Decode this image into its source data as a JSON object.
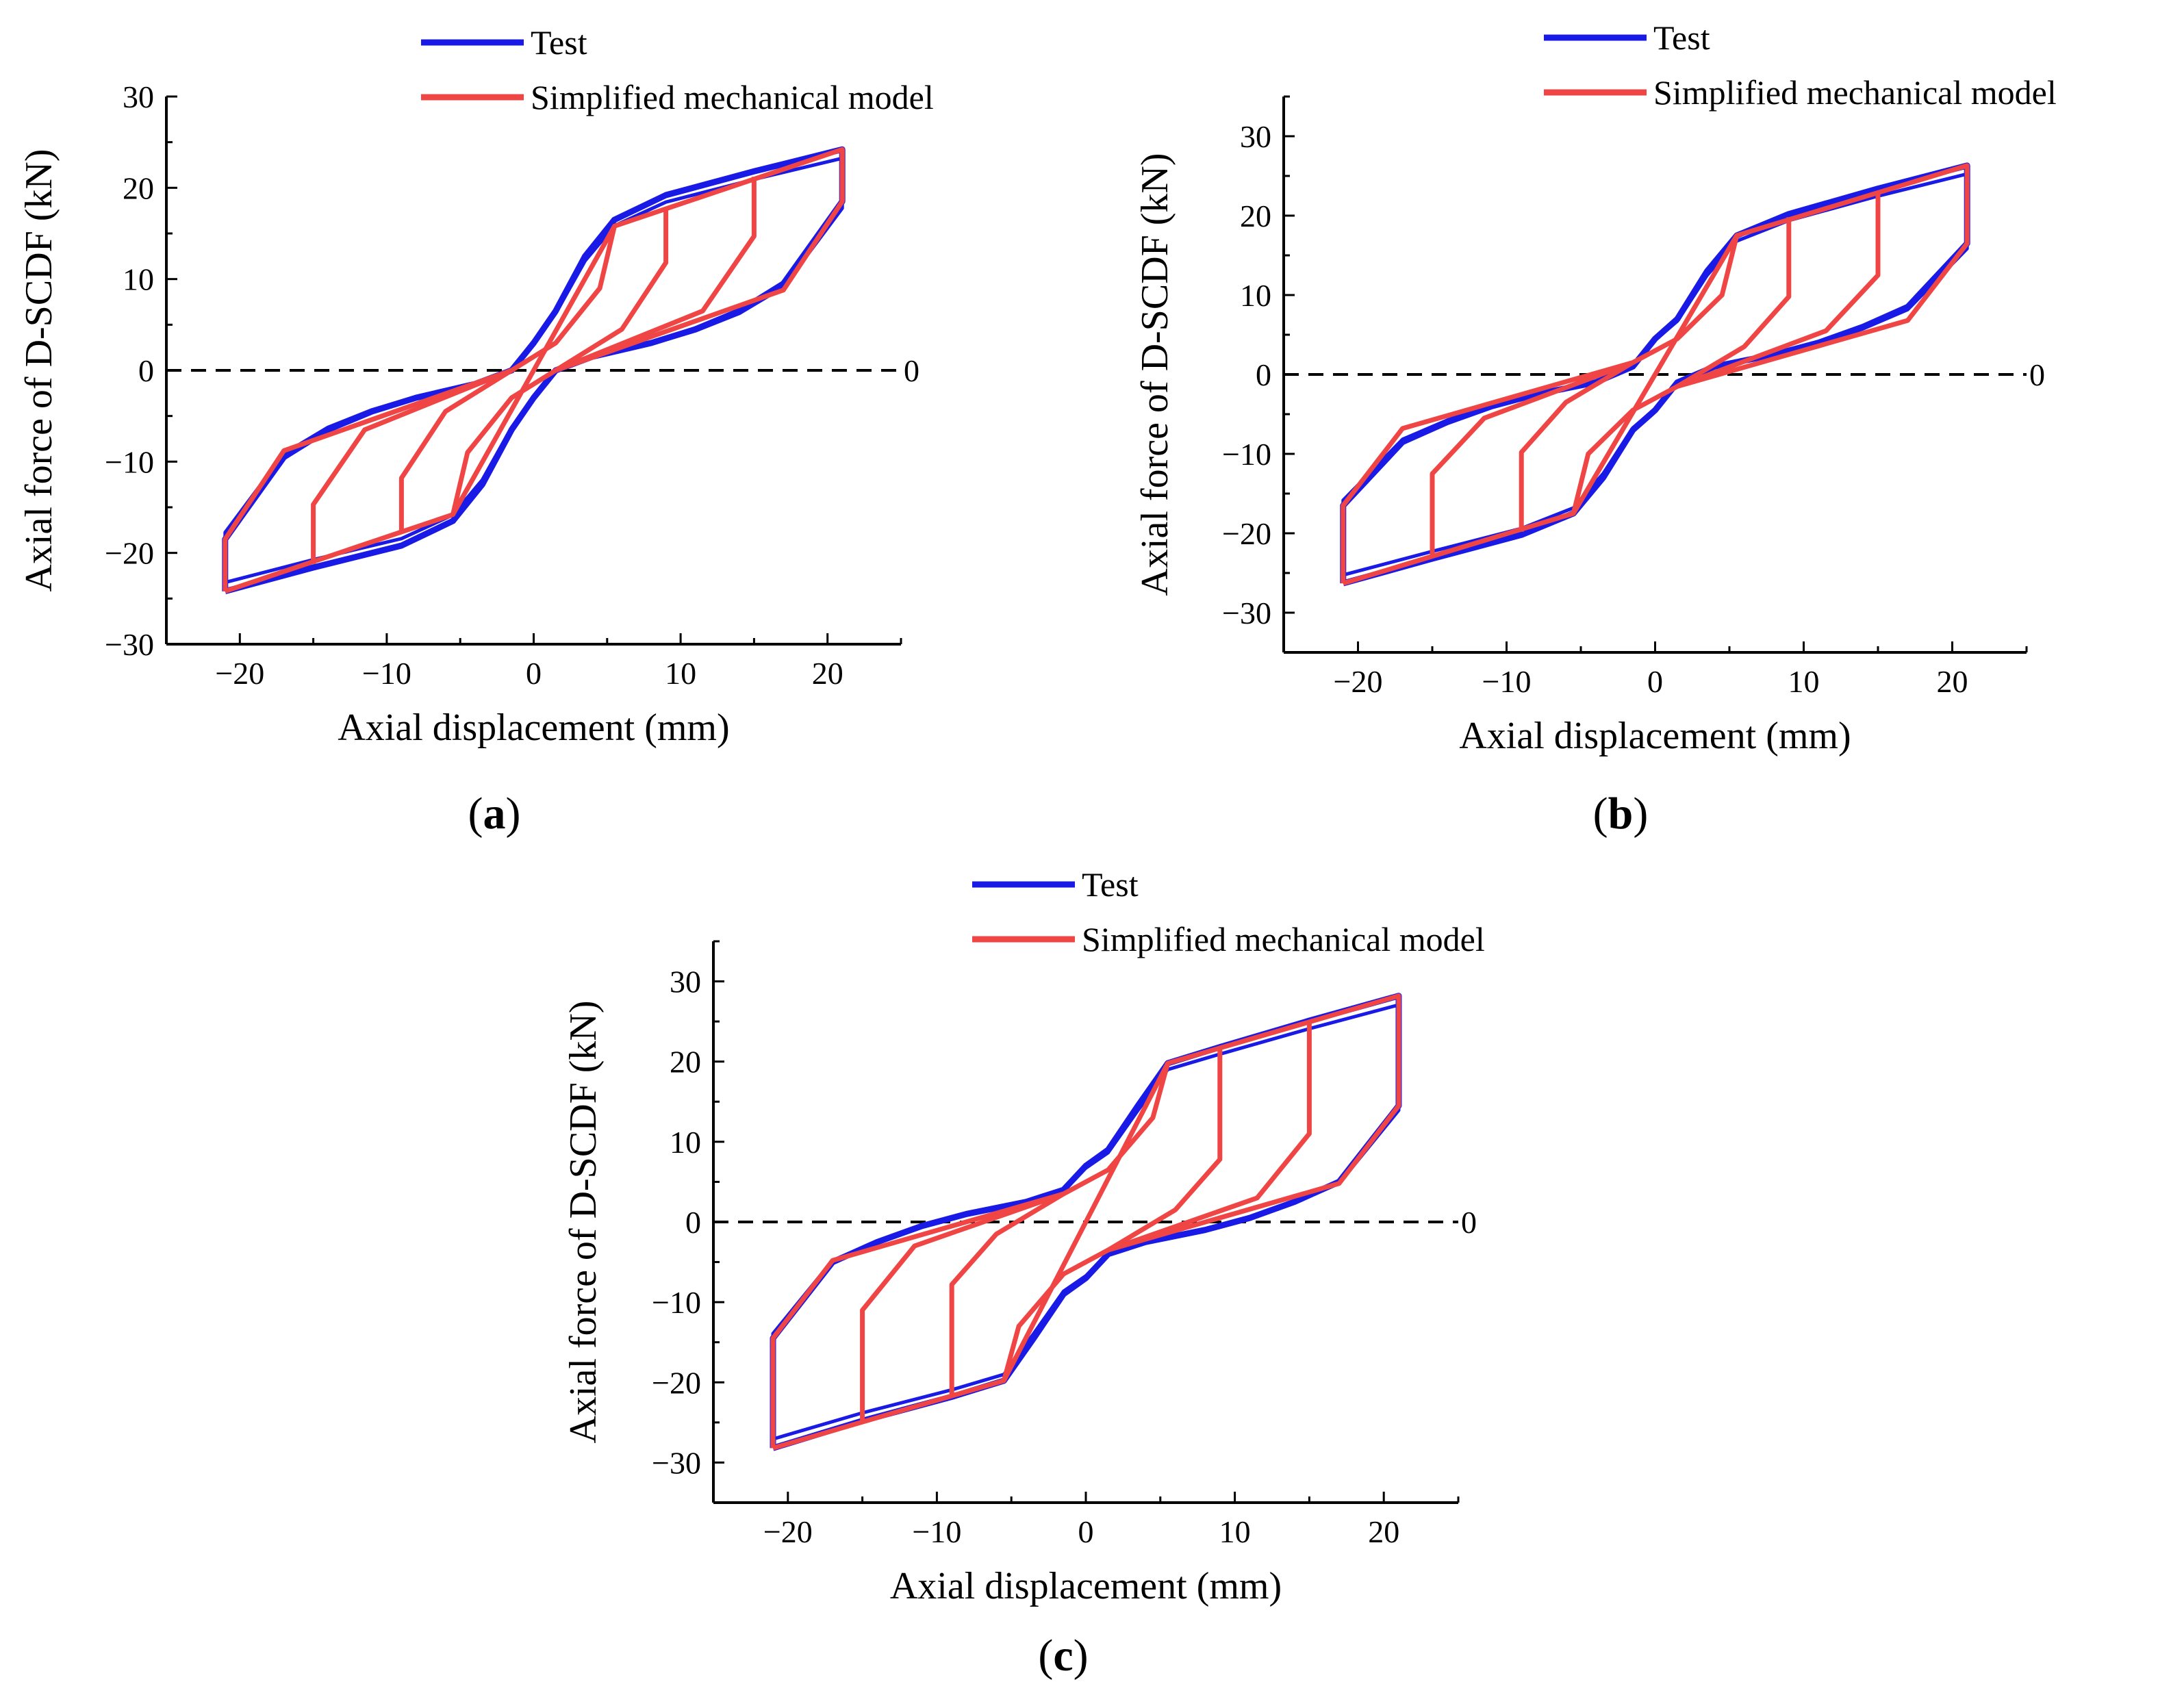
{
  "colors": {
    "test": "#1a1ae6",
    "model": "#f04545",
    "axis": "#000000",
    "zero_line": "#000000"
  },
  "chart_data": [
    {
      "type": "line",
      "caption_letter": "a",
      "caption_open": "(",
      "caption_close": ")",
      "xlabel": "Axial displacement (mm)",
      "ylabel": "Axial force of D-SCDF (kN)",
      "xlim": [
        -25,
        25
      ],
      "ylim": [
        -30,
        30
      ],
      "xticks": [
        -20,
        -10,
        0,
        10,
        20
      ],
      "xtick_labels": [
        "−20",
        "−10",
        "0",
        "10",
        "20"
      ],
      "yticks": [
        -30,
        -20,
        -10,
        0,
        10,
        20,
        30
      ],
      "ytick_labels": [
        "−30",
        "−20",
        "−10",
        "0",
        "10",
        "20",
        "30"
      ],
      "zero_line_label": "0",
      "legend_position": "top-right",
      "series": [
        {
          "name": "Test",
          "color_key": "test",
          "points": [
            [
              -21,
              -24.2
            ],
            [
              -15,
              -21.6
            ],
            [
              -9,
              -19.2
            ],
            [
              -5.5,
              -16.5
            ],
            [
              -3.5,
              -12.5
            ],
            [
              -1.5,
              -6.5
            ],
            [
              0,
              -3
            ],
            [
              1.5,
              0
            ],
            [
              4,
              1.5
            ],
            [
              8,
              3
            ],
            [
              11,
              4.5
            ],
            [
              14,
              6.5
            ],
            [
              17,
              9.5
            ],
            [
              21,
              18.5
            ],
            [
              21,
              24.2
            ],
            [
              15,
              21.8
            ],
            [
              9,
              19.2
            ],
            [
              5.5,
              16.5
            ],
            [
              3.5,
              12.5
            ],
            [
              1.5,
              6.5
            ],
            [
              0,
              3
            ],
            [
              -1.5,
              0
            ],
            [
              -4,
              -1.5
            ],
            [
              -8,
              -3
            ],
            [
              -11,
              -4.5
            ],
            [
              -14,
              -6.5
            ],
            [
              -17,
              -9.5
            ],
            [
              -21,
              -18.5
            ],
            [
              -21,
              -24.2
            ]
          ]
        },
        {
          "name": "Simplified mechanical model",
          "color_key": "model",
          "polylines": [
            [
              [
                -21,
                -24.2
              ],
              [
                -5.5,
                -15.8
              ],
              [
                5.5,
                15.8
              ],
              [
                21,
                24.2
              ],
              [
                21,
                18.5
              ],
              [
                17,
                8.8
              ],
              [
                1.5,
                0
              ],
              [
                -1.5,
                -3
              ],
              [
                -4.5,
                -9
              ],
              [
                -5.5,
                -15.8
              ]
            ],
            [
              [
                21,
                18.5
              ],
              [
                21,
                24.2
              ]
            ],
            [
              [
                15,
                21.2
              ],
              [
                15,
                14.7
              ],
              [
                11.5,
                6.5
              ],
              [
                1.5,
                0
              ]
            ],
            [
              [
                9,
                17.8
              ],
              [
                9,
                11.8
              ],
              [
                6,
                4.5
              ],
              [
                1.5,
                0
              ]
            ],
            [
              [
                5.5,
                15.8
              ],
              [
                4.5,
                9
              ],
              [
                1.5,
                3
              ],
              [
                -1.5,
                0
              ],
              [
                -17,
                -8.8
              ],
              [
                -21,
                -18.5
              ],
              [
                -21,
                -24.2
              ]
            ],
            [
              [
                -15,
                -21.2
              ],
              [
                -15,
                -14.7
              ],
              [
                -11.5,
                -6.5
              ],
              [
                -1.5,
                0
              ]
            ],
            [
              [
                -9,
                -17.8
              ],
              [
                -9,
                -11.8
              ],
              [
                -6,
                -4.5
              ],
              [
                -1.5,
                0
              ]
            ]
          ]
        }
      ]
    },
    {
      "type": "line",
      "caption_letter": "b",
      "caption_open": "(",
      "caption_close": ")",
      "xlabel": "Axial displacement (mm)",
      "ylabel": "Axial force of D-SCDF (kN)",
      "xlim": [
        -25,
        25
      ],
      "ylim": [
        -35,
        35
      ],
      "xticks": [
        -20,
        -10,
        0,
        10,
        20
      ],
      "xtick_labels": [
        "−20",
        "−10",
        "0",
        "10",
        "20"
      ],
      "yticks": [
        -30,
        -20,
        -10,
        0,
        10,
        20,
        30
      ],
      "ytick_labels": [
        "−30",
        "−20",
        "−10",
        "0",
        "10",
        "20",
        "30"
      ],
      "zero_line_label": "0",
      "legend_position": "top-right",
      "series": [
        {
          "name": "Test",
          "color_key": "test",
          "points": [
            [
              -21,
              -26.3
            ],
            [
              -15,
              -23.2
            ],
            [
              -9,
              -20.2
            ],
            [
              -5.5,
              -17.5
            ],
            [
              -3.5,
              -13
            ],
            [
              -1.5,
              -7
            ],
            [
              0,
              -4.5
            ],
            [
              1.5,
              -1
            ],
            [
              4,
              1
            ],
            [
              8,
              2.5
            ],
            [
              11,
              4
            ],
            [
              14,
              6
            ],
            [
              17,
              8.5
            ],
            [
              21,
              16.5
            ],
            [
              21,
              26.3
            ],
            [
              15,
              23.4
            ],
            [
              9,
              20.2
            ],
            [
              5.5,
              17.5
            ],
            [
              3.5,
              13
            ],
            [
              1.5,
              7
            ],
            [
              0,
              4.5
            ],
            [
              -1.5,
              1
            ],
            [
              -4,
              -1
            ],
            [
              -8,
              -2.5
            ],
            [
              -11,
              -4
            ],
            [
              -14,
              -6
            ],
            [
              -17,
              -8.5
            ],
            [
              -21,
              -16.5
            ],
            [
              -21,
              -26.3
            ]
          ]
        },
        {
          "name": "Simplified mechanical model",
          "color_key": "model",
          "polylines": [
            [
              [
                -21,
                -26.3
              ],
              [
                -5.5,
                -17.5
              ],
              [
                5.5,
                17.5
              ],
              [
                21,
                26.3
              ],
              [
                21,
                16.5
              ],
              [
                17,
                6.8
              ],
              [
                1.5,
                -1.5
              ],
              [
                -1.5,
                -4.5
              ],
              [
                -4.5,
                -10
              ],
              [
                -5.5,
                -17.5
              ]
            ],
            [
              [
                15,
                22.8
              ],
              [
                15,
                12.5
              ],
              [
                11.5,
                5.5
              ],
              [
                1.5,
                -1.5
              ]
            ],
            [
              [
                9,
                19.8
              ],
              [
                9,
                9.8
              ],
              [
                6,
                3.5
              ],
              [
                1.5,
                -1.5
              ]
            ],
            [
              [
                5.5,
                17.5
              ],
              [
                4.5,
                10
              ],
              [
                1.5,
                4.5
              ],
              [
                -1.5,
                1.5
              ],
              [
                -17,
                -6.8
              ],
              [
                -21,
                -16.5
              ],
              [
                -21,
                -26.3
              ]
            ],
            [
              [
                -15,
                -22.8
              ],
              [
                -15,
                -12.5
              ],
              [
                -11.5,
                -5.5
              ],
              [
                -1.5,
                1.5
              ]
            ],
            [
              [
                -9,
                -19.8
              ],
              [
                -9,
                -9.8
              ],
              [
                -6,
                -3.5
              ],
              [
                -1.5,
                1.5
              ]
            ]
          ]
        }
      ]
    },
    {
      "type": "line",
      "caption_letter": "c",
      "caption_open": "(",
      "caption_close": ")",
      "xlabel": "Axial displacement (mm)",
      "ylabel": "Axial force of D-SCDF (kN)",
      "xlim": [
        -25,
        25
      ],
      "ylim": [
        -35,
        35
      ],
      "xticks": [
        -20,
        -10,
        0,
        10,
        20
      ],
      "xtick_labels": [
        "−20",
        "−10",
        "0",
        "10",
        "20"
      ],
      "yticks": [
        -30,
        -20,
        -10,
        0,
        10,
        20,
        30
      ],
      "ytick_labels": [
        "−30",
        "−20",
        "−10",
        "0",
        "10",
        "20",
        "30"
      ],
      "zero_line_label": "0",
      "legend_position": "top-right",
      "series": [
        {
          "name": "Test",
          "color_key": "test",
          "points": [
            [
              -21,
              -28.2
            ],
            [
              -15,
              -24.8
            ],
            [
              -9,
              -21.8
            ],
            [
              -5.5,
              -19.8
            ],
            [
              -3.5,
              -14.5
            ],
            [
              -1.5,
              -9
            ],
            [
              0,
              -7
            ],
            [
              1.5,
              -4
            ],
            [
              4,
              -2.5
            ],
            [
              8,
              -1
            ],
            [
              11,
              0.5
            ],
            [
              14,
              2.5
            ],
            [
              17,
              5
            ],
            [
              21,
              14.5
            ],
            [
              21,
              28.2
            ],
            [
              15,
              25.1
            ],
            [
              9,
              21.8
            ],
            [
              5.5,
              19.8
            ],
            [
              3.5,
              14.5
            ],
            [
              1.5,
              9
            ],
            [
              0,
              7
            ],
            [
              -1.5,
              4
            ],
            [
              -4,
              2.5
            ],
            [
              -8,
              1
            ],
            [
              -11,
              -0.5
            ],
            [
              -14,
              -2.5
            ],
            [
              -17,
              -5
            ],
            [
              -21,
              -14.5
            ],
            [
              -21,
              -28.2
            ]
          ]
        },
        {
          "name": "Simplified mechanical model",
          "color_key": "model",
          "polylines": [
            [
              [
                -21,
                -28.2
              ],
              [
                -5.5,
                -19.8
              ],
              [
                5.5,
                19.8
              ],
              [
                21,
                28.2
              ],
              [
                21,
                14.5
              ],
              [
                17,
                4.8
              ],
              [
                1.5,
                -3.5
              ],
              [
                -1.5,
                -6.5
              ],
              [
                -4.5,
                -13
              ],
              [
                -5.5,
                -19.8
              ]
            ],
            [
              [
                15,
                24.8
              ],
              [
                15,
                11
              ],
              [
                11.5,
                3
              ],
              [
                1.5,
                -3.5
              ]
            ],
            [
              [
                9,
                21.6
              ],
              [
                9,
                7.8
              ],
              [
                6,
                1.5
              ],
              [
                1.5,
                -3.5
              ]
            ],
            [
              [
                5.5,
                19.8
              ],
              [
                4.5,
                13
              ],
              [
                1.5,
                6.5
              ],
              [
                -1.5,
                3.5
              ],
              [
                -17,
                -4.8
              ],
              [
                -21,
                -14.5
              ],
              [
                -21,
                -28.2
              ]
            ],
            [
              [
                -15,
                -24.8
              ],
              [
                -15,
                -11
              ],
              [
                -11.5,
                -3
              ],
              [
                -1.5,
                3.5
              ]
            ],
            [
              [
                -9,
                -21.6
              ],
              [
                -9,
                -7.8
              ],
              [
                -6,
                -1.5
              ],
              [
                -1.5,
                3.5
              ]
            ]
          ]
        }
      ]
    }
  ]
}
